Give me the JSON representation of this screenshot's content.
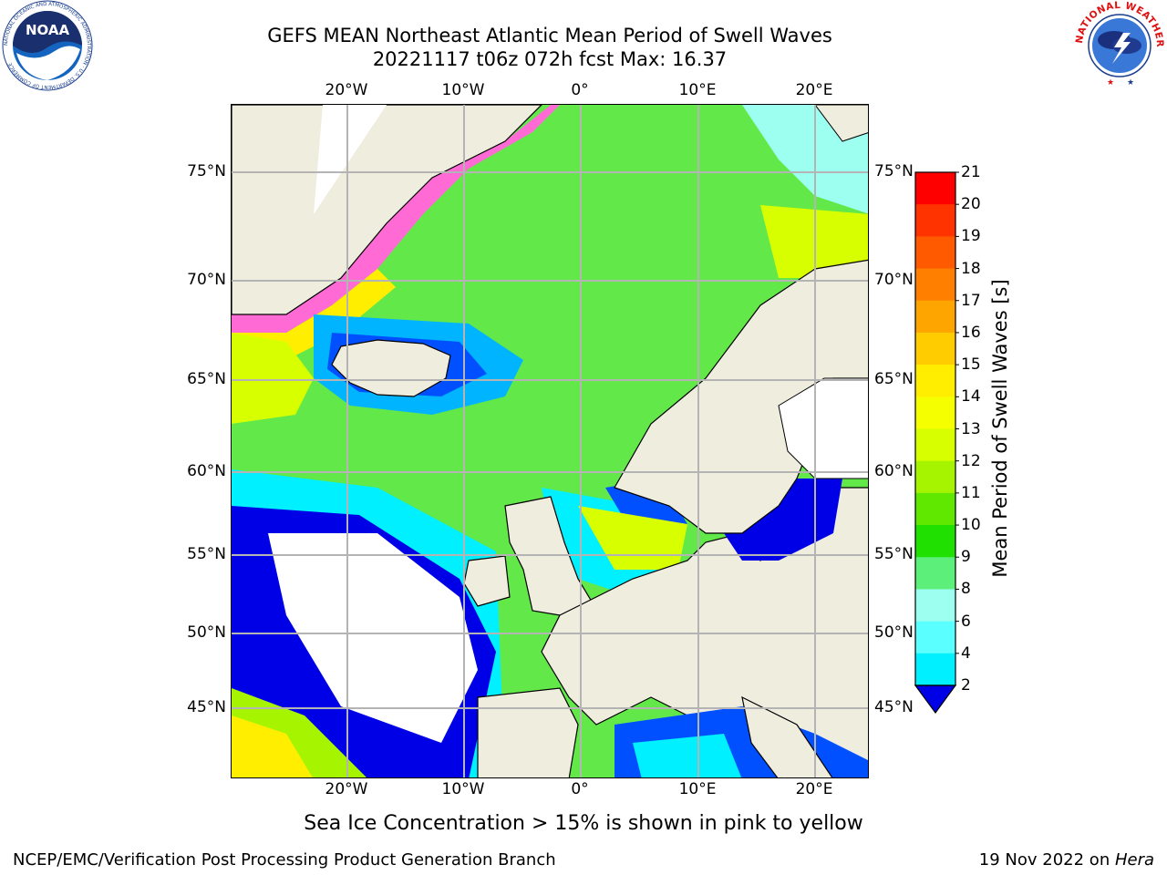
{
  "header": {
    "title_line1": "GEFS MEAN Northeast Atlantic Mean Period of Swell Waves",
    "title_line2": "20221117 t06z 072h fcst   Max: 16.37"
  },
  "map": {
    "lon_labels": [
      "20°W",
      "10°W",
      "0°",
      "10°E",
      "20°E"
    ],
    "lat_labels": [
      "75°N",
      "70°N",
      "65°N",
      "60°N",
      "55°N",
      "50°N",
      "45°N"
    ],
    "land_color": "#efedde",
    "grid_color": "#b4b4b4"
  },
  "colorbar": {
    "label": "Mean Period of Swell Waves [s]",
    "ticks": [
      "21",
      "20",
      "19",
      "18",
      "17",
      "16",
      "15",
      "14",
      "13",
      "12",
      "11",
      "10",
      "9",
      "8",
      "6",
      "4",
      "2"
    ],
    "colors": [
      "#ff0000",
      "#ff3300",
      "#ff5a00",
      "#ff8000",
      "#ffa500",
      "#ffcc00",
      "#ffee00",
      "#f5ff00",
      "#d8ff00",
      "#a7f400",
      "#60e800",
      "#1fe000",
      "#5cf07a",
      "#9cffef",
      "#5affff",
      "#00f0ff",
      "#00b4ff",
      "#0050ff",
      "#0000e6"
    ]
  },
  "note": "Sea Ice Concentration > 15% is shown in pink to yellow",
  "footer": {
    "left": "NCEP/EMC/Verification Post Processing Product Generation Branch",
    "right_date": "19 Nov 2022 on ",
    "right_machine": "Hera"
  },
  "logos": {
    "left_text": "NOAA",
    "left_ring_text": "NATIONAL OCEANIC AND ATMOSPHERIC ADMINISTRATION · U.S. DEPARTMENT OF COMMERCE",
    "right_ring_text": "NATIONAL WEATHER SERVICE"
  }
}
